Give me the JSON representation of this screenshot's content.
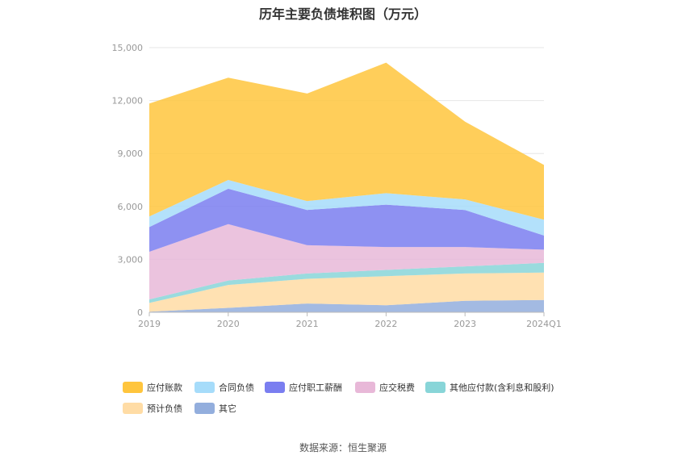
{
  "chart_data": {
    "type": "area",
    "title": "历年主要负债堆积图（万元）",
    "categories": [
      "2019",
      "2020",
      "2021",
      "2022",
      "2023",
      "2024Q1"
    ],
    "y_ticks": [
      "0",
      "3,000",
      "6,000",
      "9,000",
      "12,000",
      "15,000"
    ],
    "ylim": [
      0,
      15000
    ],
    "stacked": true,
    "grid": true,
    "legend_position": "bottom",
    "series": [
      {
        "name": "应付账款",
        "color": "#FFC53D",
        "values": [
          6400,
          5800,
          6100,
          7400,
          4400,
          3100
        ]
      },
      {
        "name": "合同负债",
        "color": "#A6DCFA",
        "values": [
          600,
          500,
          500,
          650,
          600,
          900
        ]
      },
      {
        "name": "应付职工薪酬",
        "color": "#7A7EF0",
        "values": [
          1400,
          2000,
          2000,
          2400,
          2100,
          800
        ]
      },
      {
        "name": "应交税费",
        "color": "#E8B8D8",
        "values": [
          2700,
          3200,
          1600,
          1300,
          1100,
          750
        ]
      },
      {
        "name": "其他应付款(含利息和股利)",
        "color": "#88D5D8",
        "values": [
          200,
          250,
          300,
          350,
          400,
          550
        ]
      },
      {
        "name": "预计负债",
        "color": "#FFDCA5",
        "values": [
          500,
          1300,
          1400,
          1650,
          1550,
          1550
        ]
      },
      {
        "name": "其它",
        "color": "#93AEDD",
        "values": [
          30,
          250,
          500,
          400,
          650,
          700
        ]
      }
    ]
  },
  "source_note": "数据来源：恒生聚源"
}
